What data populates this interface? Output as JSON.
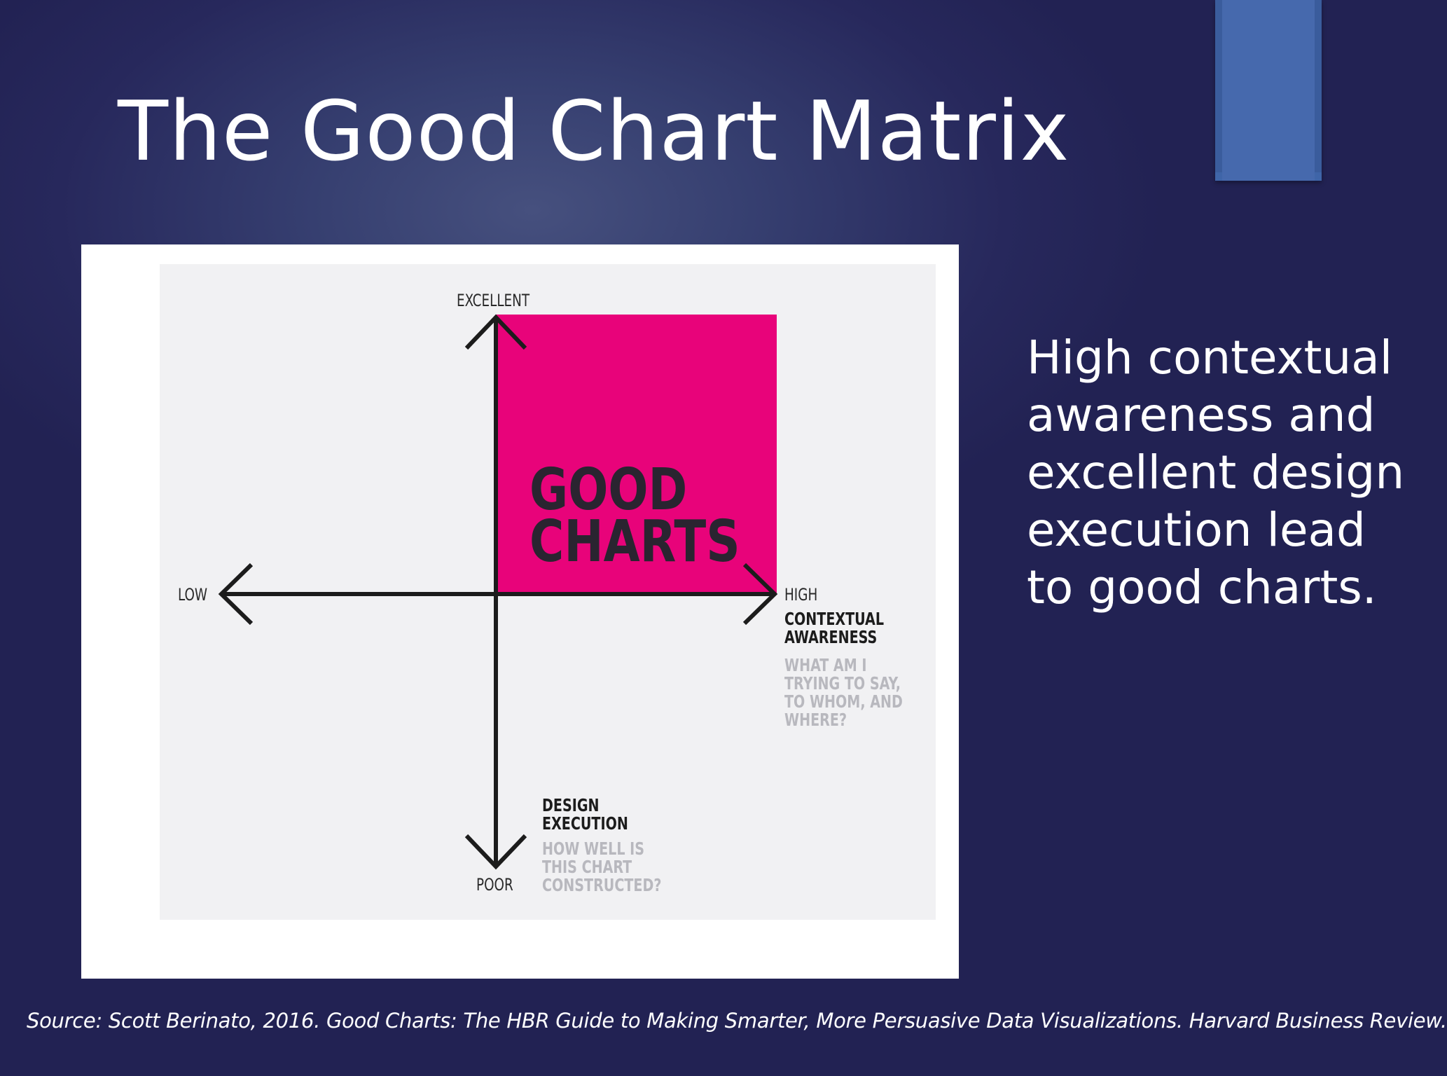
{
  "slide": {
    "title": "The Good Chart Matrix",
    "side_text": "High contextual awareness and excellent design execution lead to good charts.",
    "source": "Source: Scott Berinato, 2016. Good Charts: The HBR Guide to Making Smarter, More Persuasive Data Visualizations. Harvard Business Review."
  },
  "matrix": {
    "y_top_label": "EXCELLENT",
    "y_bottom_label": "POOR",
    "x_left_label": "LOW",
    "x_right_label": "HIGH",
    "quadrant_line1": "GOOD",
    "quadrant_line2": "CHARTS",
    "x_axis_name": "CONTEXTUAL AWARENESS",
    "x_axis_name_line1": "CONTEXTUAL",
    "x_axis_name_line2": "AWARENESS",
    "x_axis_question_line1": "WHAT AM I",
    "x_axis_question_line2": "TRYING TO SAY,",
    "x_axis_question_line3": "TO WHOM, AND",
    "x_axis_question_line4": "WHERE?",
    "y_axis_name_line1": "DESIGN",
    "y_axis_name_line2": "EXECUTION",
    "y_axis_question_line1": "HOW WELL IS",
    "y_axis_question_line2": "THIS CHART",
    "y_axis_question_line3": "CONSTRUCTED?"
  },
  "colors": {
    "background": "#27285c",
    "quadrant": "#e8037a",
    "ribbon": "#4669ad"
  }
}
